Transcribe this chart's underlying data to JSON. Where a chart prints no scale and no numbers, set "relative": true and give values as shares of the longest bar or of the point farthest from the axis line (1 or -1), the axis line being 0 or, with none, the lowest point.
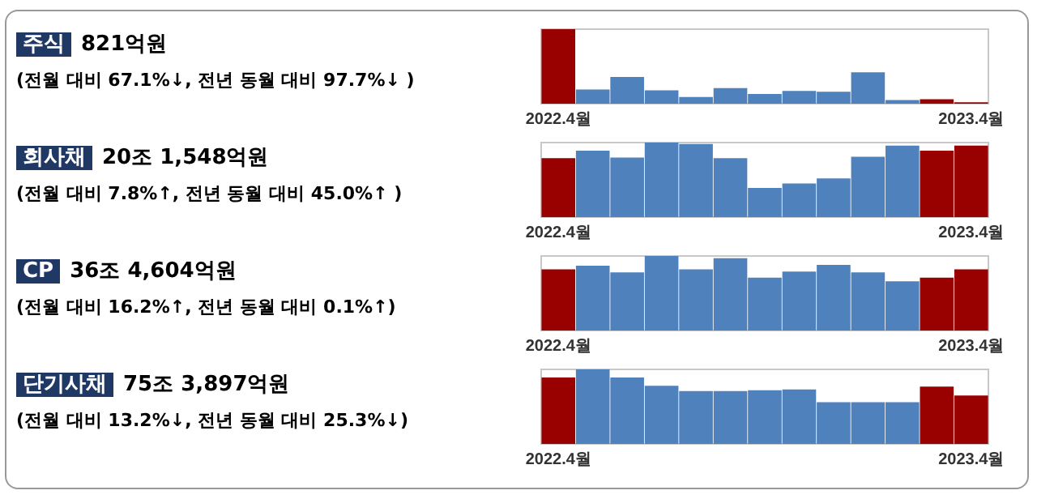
{
  "chart_data": [
    {
      "type": "other",
      "title": "주식",
      "subtitle": "821억원",
      "annotations": [
        "(전월 대비 67.1%↓, 전년 동월 대비 97.7%↓ )"
      ]
    },
    {
      "type": "bar",
      "relative": true,
      "categories": [
        "2022.4월",
        null,
        null,
        null,
        null,
        null,
        null,
        null,
        null,
        null,
        null,
        null,
        "2023.4월"
      ],
      "values": [
        1,
        0.19,
        0.36,
        0.18,
        0.09,
        0.21,
        0.13,
        0.17,
        0.16,
        0.42,
        0.05,
        0.06,
        0.02
      ],
      "colors": [
        "#990000",
        "#4f81bd",
        "#4f81bd",
        "#4f81bd",
        "#4f81bd",
        "#4f81bd",
        "#4f81bd",
        "#4f81bd",
        "#4f81bd",
        "#4f81bd",
        "#4f81bd",
        "#990000",
        "#990000"
      ]
    },
    {
      "type": "other",
      "title": "회사채",
      "subtitle": "20조 1,548억원",
      "annotations": [
        "(전월 대비 7.8%↑, 전년 동월 대비 45.0%↑ )"
      ]
    },
    {
      "type": "bar",
      "relative": true,
      "categories": [
        "2022.4월",
        null,
        null,
        null,
        null,
        null,
        null,
        null,
        null,
        null,
        null,
        null,
        "2023.4월"
      ],
      "values": [
        0.79,
        0.89,
        0.8,
        1,
        0.98,
        0.79,
        0.39,
        0.45,
        0.52,
        0.81,
        0.96,
        0.89,
        0.96
      ],
      "colors": [
        "#990000",
        "#4f81bd",
        "#4f81bd",
        "#4f81bd",
        "#4f81bd",
        "#4f81bd",
        "#4f81bd",
        "#4f81bd",
        "#4f81bd",
        "#4f81bd",
        "#4f81bd",
        "#990000",
        "#990000"
      ]
    },
    {
      "type": "other",
      "title": "CP",
      "subtitle": "36조 4,604억원",
      "annotations": [
        "(전월 대비 16.2%↑, 전년 동월 대비 0.1%↑)"
      ]
    },
    {
      "type": "bar",
      "relative": true,
      "categories": [
        "2022.4월",
        null,
        null,
        null,
        null,
        null,
        null,
        null,
        null,
        null,
        null,
        null,
        "2023.4월"
      ],
      "values": [
        0.82,
        0.87,
        0.78,
        1,
        0.82,
        0.97,
        0.71,
        0.79,
        0.88,
        0.78,
        0.66,
        0.71,
        0.82
      ],
      "colors": [
        "#990000",
        "#4f81bd",
        "#4f81bd",
        "#4f81bd",
        "#4f81bd",
        "#4f81bd",
        "#4f81bd",
        "#4f81bd",
        "#4f81bd",
        "#4f81bd",
        "#4f81bd",
        "#990000",
        "#990000"
      ]
    },
    {
      "type": "other",
      "title": "단기사채",
      "subtitle": "75조 3,897억원",
      "annotations": [
        "(전월 대비 13.2%↓, 전년 동월 대비 25.3%↓)"
      ]
    },
    {
      "type": "bar",
      "relative": true,
      "categories": [
        "2022.4월",
        null,
        null,
        null,
        null,
        null,
        null,
        null,
        null,
        null,
        null,
        null,
        "2023.4월"
      ],
      "values": [
        0.89,
        1,
        0.89,
        0.78,
        0.71,
        0.71,
        0.72,
        0.73,
        0.56,
        0.56,
        0.56,
        0.77,
        0.65
      ],
      "colors": [
        "#990000",
        "#4f81bd",
        "#4f81bd",
        "#4f81bd",
        "#4f81bd",
        "#4f81bd",
        "#4f81bd",
        "#4f81bd",
        "#4f81bd",
        "#4f81bd",
        "#4f81bd",
        "#990000",
        "#990000"
      ]
    }
  ]
}
